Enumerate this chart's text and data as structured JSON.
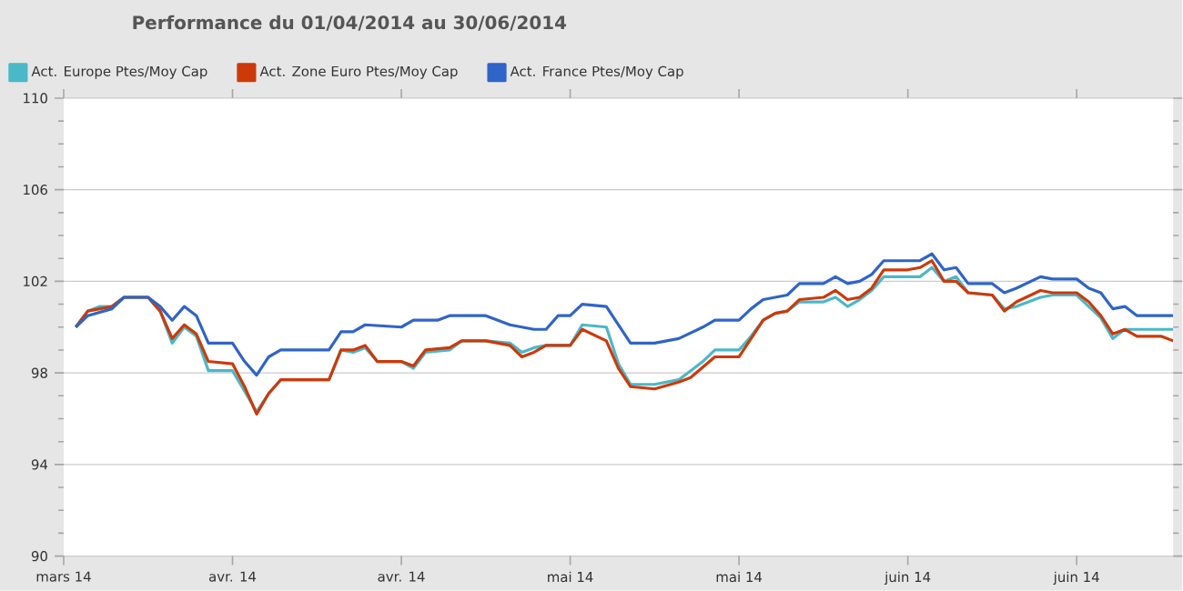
{
  "chart_data": {
    "type": "line",
    "title": "Performance du 01/04/2014 au 30/06/2014",
    "xlim": [
      "2014-03-31",
      "2014-07-01"
    ],
    "xticks": [
      {
        "value": "2014-03-31",
        "label": "mars 14"
      },
      {
        "value": "2014-04-14",
        "label": "avr. 14"
      },
      {
        "value": "2014-04-28",
        "label": "avr. 14"
      },
      {
        "value": "2014-05-12",
        "label": "mai 14"
      },
      {
        "value": "2014-05-26",
        "label": "mai 14"
      },
      {
        "value": "2014-06-09",
        "label": "juin 14"
      },
      {
        "value": "2014-06-23",
        "label": "juin 14"
      }
    ],
    "ylim": [
      90,
      110
    ],
    "yticks": [
      90,
      94,
      98,
      102,
      106,
      110
    ],
    "grid": "y",
    "legend": "top left",
    "series": [
      {
        "name": "Act. Europe Ptes/Moy Cap",
        "color": "#4bb8c8",
        "x": [
          "2014-04-01",
          "2014-04-02",
          "2014-04-03",
          "2014-04-04",
          "2014-04-05",
          "2014-04-07",
          "2014-04-08",
          "2014-04-09",
          "2014-04-10",
          "2014-04-11",
          "2014-04-12",
          "2014-04-14",
          "2014-04-15",
          "2014-04-16",
          "2014-04-17",
          "2014-04-18",
          "2014-04-22",
          "2014-04-23",
          "2014-04-24",
          "2014-04-25",
          "2014-04-26",
          "2014-04-28",
          "2014-04-29",
          "2014-04-30",
          "2014-05-02",
          "2014-05-03",
          "2014-05-05",
          "2014-05-07",
          "2014-05-08",
          "2014-05-09",
          "2014-05-10",
          "2014-05-12",
          "2014-05-13",
          "2014-05-15",
          "2014-05-16",
          "2014-05-17",
          "2014-05-19",
          "2014-05-21",
          "2014-05-23",
          "2014-05-24",
          "2014-05-26",
          "2014-05-27",
          "2014-05-28",
          "2014-05-29",
          "2014-05-30",
          "2014-05-31",
          "2014-06-02",
          "2014-06-03",
          "2014-06-04",
          "2014-06-05",
          "2014-06-06",
          "2014-06-07",
          "2014-06-09",
          "2014-06-10",
          "2014-06-11",
          "2014-06-12",
          "2014-06-13",
          "2014-06-14",
          "2014-06-16",
          "2014-06-17",
          "2014-06-18",
          "2014-06-20",
          "2014-06-21",
          "2014-06-23",
          "2014-06-24",
          "2014-06-25",
          "2014-06-26",
          "2014-06-27",
          "2014-06-28",
          "2014-06-30",
          "2014-07-01"
        ],
        "values": [
          100.0,
          100.7,
          100.9,
          100.9,
          101.3,
          101.3,
          100.7,
          99.3,
          100.0,
          99.6,
          98.1,
          98.1,
          97.2,
          96.3,
          97.1,
          97.7,
          97.7,
          99.0,
          98.9,
          99.1,
          98.5,
          98.5,
          98.2,
          98.9,
          99.0,
          99.4,
          99.4,
          99.3,
          98.9,
          99.1,
          99.2,
          99.2,
          100.1,
          100.0,
          98.4,
          97.5,
          97.5,
          97.7,
          98.5,
          99.0,
          99.0,
          99.6,
          100.3,
          100.6,
          100.7,
          101.1,
          101.1,
          101.3,
          100.9,
          101.2,
          101.6,
          102.2,
          102.2,
          102.2,
          102.6,
          102.0,
          102.2,
          101.5,
          101.4,
          100.8,
          100.9,
          101.3,
          101.4,
          101.4,
          100.9,
          100.4,
          99.5,
          99.9,
          99.9,
          99.9,
          99.9
        ]
      },
      {
        "name": "Act. Zone Euro Ptes/Moy Cap",
        "color": "#cc3a0a",
        "x": [
          "2014-04-01",
          "2014-04-02",
          "2014-04-04",
          "2014-04-05",
          "2014-04-07",
          "2014-04-08",
          "2014-04-09",
          "2014-04-10",
          "2014-04-11",
          "2014-04-12",
          "2014-04-14",
          "2014-04-15",
          "2014-04-16",
          "2014-04-17",
          "2014-04-18",
          "2014-04-22",
          "2014-04-23",
          "2014-04-24",
          "2014-04-25",
          "2014-04-26",
          "2014-04-28",
          "2014-04-29",
          "2014-04-30",
          "2014-05-02",
          "2014-05-03",
          "2014-05-05",
          "2014-05-07",
          "2014-05-08",
          "2014-05-09",
          "2014-05-10",
          "2014-05-12",
          "2014-05-13",
          "2014-05-15",
          "2014-05-16",
          "2014-05-17",
          "2014-05-19",
          "2014-05-21",
          "2014-05-22",
          "2014-05-24",
          "2014-05-26",
          "2014-05-27",
          "2014-05-28",
          "2014-05-29",
          "2014-05-30",
          "2014-05-31",
          "2014-06-02",
          "2014-06-03",
          "2014-06-04",
          "2014-06-05",
          "2014-06-06",
          "2014-06-07",
          "2014-06-09",
          "2014-06-10",
          "2014-06-11",
          "2014-06-12",
          "2014-06-13",
          "2014-06-14",
          "2014-06-16",
          "2014-06-17",
          "2014-06-18",
          "2014-06-20",
          "2014-06-21",
          "2014-06-23",
          "2014-06-24",
          "2014-06-25",
          "2014-06-26",
          "2014-06-27",
          "2014-06-28",
          "2014-06-30",
          "2014-07-01"
        ],
        "values": [
          100.0,
          100.7,
          100.9,
          101.3,
          101.3,
          100.7,
          99.5,
          100.1,
          99.7,
          98.5,
          98.4,
          97.4,
          96.2,
          97.1,
          97.7,
          97.7,
          99.0,
          99.0,
          99.2,
          98.5,
          98.5,
          98.3,
          99.0,
          99.1,
          99.4,
          99.4,
          99.2,
          98.7,
          98.9,
          99.2,
          99.2,
          99.9,
          99.4,
          98.2,
          97.4,
          97.3,
          97.6,
          97.8,
          98.7,
          98.7,
          99.5,
          100.3,
          100.6,
          100.7,
          101.2,
          101.3,
          101.6,
          101.2,
          101.3,
          101.7,
          102.5,
          102.5,
          102.6,
          102.9,
          102.0,
          102.0,
          101.5,
          101.4,
          100.7,
          101.1,
          101.6,
          101.5,
          101.5,
          101.1,
          100.5,
          99.7,
          99.9,
          99.6,
          99.6,
          99.4
        ]
      },
      {
        "name": "Act. France Ptes/Moy Cap",
        "color": "#2f64c8",
        "x": [
          "2014-04-01",
          "2014-04-02",
          "2014-04-04",
          "2014-04-05",
          "2014-04-07",
          "2014-04-08",
          "2014-04-09",
          "2014-04-10",
          "2014-04-11",
          "2014-04-12",
          "2014-04-14",
          "2014-04-15",
          "2014-04-16",
          "2014-04-17",
          "2014-04-18",
          "2014-04-22",
          "2014-04-23",
          "2014-04-24",
          "2014-04-25",
          "2014-04-28",
          "2014-04-29",
          "2014-05-01",
          "2014-05-02",
          "2014-05-05",
          "2014-05-07",
          "2014-05-09",
          "2014-05-10",
          "2014-05-11",
          "2014-05-12",
          "2014-05-13",
          "2014-05-15",
          "2014-05-17",
          "2014-05-19",
          "2014-05-20",
          "2014-05-21",
          "2014-05-23",
          "2014-05-24",
          "2014-05-26",
          "2014-05-27",
          "2014-05-28",
          "2014-05-30",
          "2014-05-31",
          "2014-06-02",
          "2014-06-03",
          "2014-06-04",
          "2014-06-05",
          "2014-06-06",
          "2014-06-07",
          "2014-06-10",
          "2014-06-11",
          "2014-06-12",
          "2014-06-13",
          "2014-06-14",
          "2014-06-16",
          "2014-06-17",
          "2014-06-18",
          "2014-06-20",
          "2014-06-21",
          "2014-06-23",
          "2014-06-24",
          "2014-06-25",
          "2014-06-26",
          "2014-06-27",
          "2014-06-28",
          "2014-06-30",
          "2014-07-01"
        ],
        "values": [
          100.0,
          100.5,
          100.8,
          101.3,
          101.3,
          100.9,
          100.3,
          100.9,
          100.5,
          99.3,
          99.3,
          98.5,
          97.9,
          98.7,
          99.0,
          99.0,
          99.8,
          99.8,
          100.1,
          100.0,
          100.3,
          100.3,
          100.5,
          100.5,
          100.1,
          99.9,
          99.9,
          100.5,
          100.5,
          101.0,
          100.9,
          99.3,
          99.3,
          99.4,
          99.5,
          100.0,
          100.3,
          100.3,
          100.8,
          101.2,
          101.4,
          101.9,
          101.9,
          102.2,
          101.9,
          102.0,
          102.3,
          102.9,
          102.9,
          103.2,
          102.5,
          102.6,
          101.9,
          101.9,
          101.5,
          101.7,
          102.2,
          102.1,
          102.1,
          101.7,
          101.5,
          100.8,
          100.9,
          100.5,
          100.5,
          100.5
        ]
      }
    ]
  }
}
